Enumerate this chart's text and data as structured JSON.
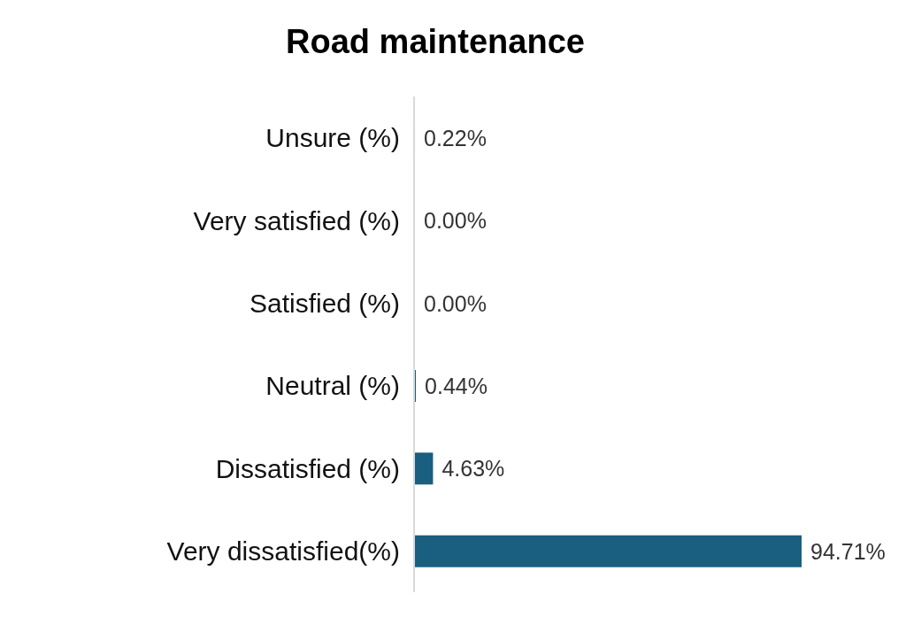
{
  "chart_data": {
    "type": "bar",
    "title": "Road maintenance",
    "orientation": "horizontal",
    "categories": [
      "Unsure (%)",
      "Very satisfied (%)",
      "Satisfied (%)",
      "Neutral (%)",
      "Dissatisfied (%)",
      "Very dissatisfied(%)"
    ],
    "values": [
      0.22,
      0.0,
      0.0,
      0.44,
      4.63,
      94.71
    ],
    "value_labels": [
      "0.22%",
      "0.00%",
      "0.00%",
      "0.44%",
      "4.63%",
      "94.71%"
    ],
    "color": "#1a5e80"
  }
}
